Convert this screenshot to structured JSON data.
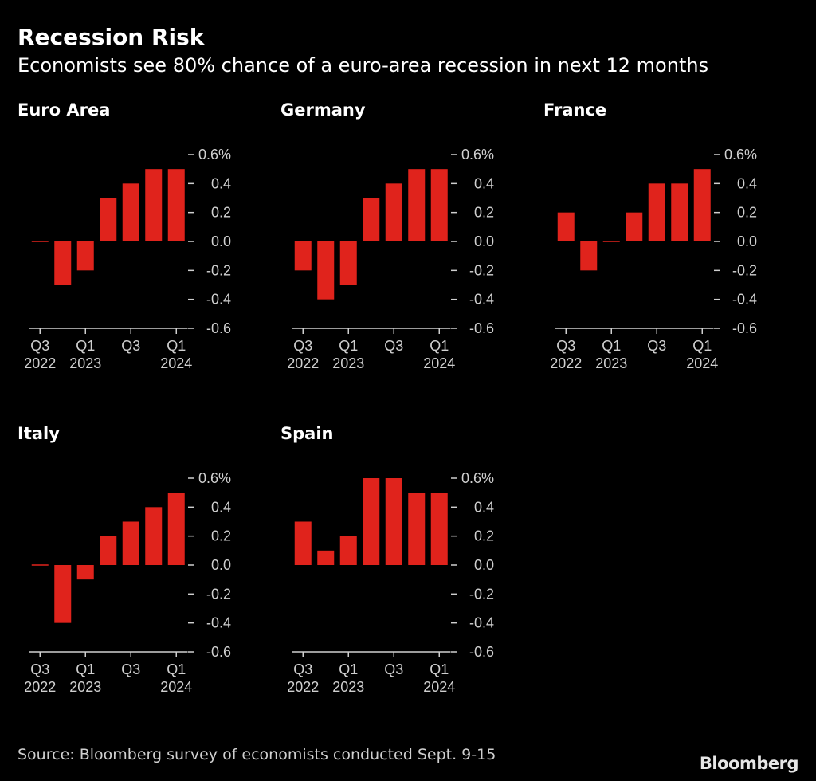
{
  "header": {
    "title": "Recession Risk",
    "subtitle": "Economists see 80% chance of a euro-area recession in next 12 months"
  },
  "footer": {
    "source": "Source: Bloomberg survey of economists conducted Sept. 9-15",
    "logo_text": "Bloomberg"
  },
  "colors": {
    "background": "#000000",
    "bar": "#e0231c",
    "text": "#ffffff",
    "axis": "#cfcfcf"
  },
  "chart_data": [
    {
      "type": "bar",
      "title": "Euro Area",
      "categories": [
        "Q3 2022",
        "Q4 2022",
        "Q1 2023",
        "Q2 2023",
        "Q3 2023",
        "Q4 2023",
        "Q1 2024"
      ],
      "values": [
        0.0,
        -0.3,
        -0.2,
        0.3,
        0.4,
        0.5,
        0.5
      ],
      "x_tick_labels": [
        {
          "line1": "Q3",
          "line2": "2022",
          "index": 0
        },
        {
          "line1": "Q1",
          "line2": "2023",
          "index": 2
        },
        {
          "line1": "Q3",
          "line2": "",
          "index": 4
        },
        {
          "line1": "Q1",
          "line2": "2024",
          "index": 6
        }
      ],
      "y_ticks": [
        0.6,
        0.4,
        0.2,
        0.0,
        -0.2,
        -0.4,
        -0.6
      ],
      "y_tick_labels": [
        "0.6%",
        "0.4",
        "0.2",
        "0.0",
        "-0.2",
        "-0.4",
        "-0.6"
      ],
      "ylim": [
        -0.6,
        0.6
      ],
      "grid": false
    },
    {
      "type": "bar",
      "title": "Germany",
      "categories": [
        "Q3 2022",
        "Q4 2022",
        "Q1 2023",
        "Q2 2023",
        "Q3 2023",
        "Q4 2023",
        "Q1 2024"
      ],
      "values": [
        -0.2,
        -0.4,
        -0.3,
        0.3,
        0.4,
        0.5,
        0.5
      ],
      "x_tick_labels": [
        {
          "line1": "Q3",
          "line2": "2022",
          "index": 0
        },
        {
          "line1": "Q1",
          "line2": "2023",
          "index": 2
        },
        {
          "line1": "Q3",
          "line2": "",
          "index": 4
        },
        {
          "line1": "Q1",
          "line2": "2024",
          "index": 6
        }
      ],
      "y_ticks": [
        0.6,
        0.4,
        0.2,
        0.0,
        -0.2,
        -0.4,
        -0.6
      ],
      "y_tick_labels": [
        "0.6%",
        "0.4",
        "0.2",
        "0.0",
        "-0.2",
        "-0.4",
        "-0.6"
      ],
      "ylim": [
        -0.6,
        0.6
      ],
      "grid": false
    },
    {
      "type": "bar",
      "title": "France",
      "categories": [
        "Q3 2022",
        "Q4 2022",
        "Q1 2023",
        "Q2 2023",
        "Q3 2023",
        "Q4 2023",
        "Q1 2024"
      ],
      "values": [
        0.2,
        -0.2,
        0.0,
        0.2,
        0.4,
        0.4,
        0.5
      ],
      "x_tick_labels": [
        {
          "line1": "Q3",
          "line2": "2022",
          "index": 0
        },
        {
          "line1": "Q1",
          "line2": "2023",
          "index": 2
        },
        {
          "line1": "Q3",
          "line2": "",
          "index": 4
        },
        {
          "line1": "Q1",
          "line2": "2024",
          "index": 6
        }
      ],
      "y_ticks": [
        0.6,
        0.4,
        0.2,
        0.0,
        -0.2,
        -0.4,
        -0.6
      ],
      "y_tick_labels": [
        "0.6%",
        "0.4",
        "0.2",
        "0.0",
        "-0.2",
        "-0.4",
        "-0.6"
      ],
      "ylim": [
        -0.6,
        0.6
      ],
      "grid": false
    },
    {
      "type": "bar",
      "title": "Italy",
      "categories": [
        "Q3 2022",
        "Q4 2022",
        "Q1 2023",
        "Q2 2023",
        "Q3 2023",
        "Q4 2023",
        "Q1 2024"
      ],
      "values": [
        0.0,
        -0.4,
        -0.1,
        0.2,
        0.3,
        0.4,
        0.5
      ],
      "x_tick_labels": [
        {
          "line1": "Q3",
          "line2": "2022",
          "index": 0
        },
        {
          "line1": "Q1",
          "line2": "2023",
          "index": 2
        },
        {
          "line1": "Q3",
          "line2": "",
          "index": 4
        },
        {
          "line1": "Q1",
          "line2": "2024",
          "index": 6
        }
      ],
      "y_ticks": [
        0.6,
        0.4,
        0.2,
        0.0,
        -0.2,
        -0.4,
        -0.6
      ],
      "y_tick_labels": [
        "0.6%",
        "0.4",
        "0.2",
        "0.0",
        "-0.2",
        "-0.4",
        "-0.6"
      ],
      "ylim": [
        -0.6,
        0.6
      ],
      "grid": false
    },
    {
      "type": "bar",
      "title": "Spain",
      "categories": [
        "Q3 2022",
        "Q4 2022",
        "Q1 2023",
        "Q2 2023",
        "Q3 2023",
        "Q4 2023",
        "Q1 2024"
      ],
      "values": [
        0.3,
        0.1,
        0.2,
        0.6,
        0.6,
        0.5,
        0.5
      ],
      "x_tick_labels": [
        {
          "line1": "Q3",
          "line2": "2022",
          "index": 0
        },
        {
          "line1": "Q1",
          "line2": "2023",
          "index": 2
        },
        {
          "line1": "Q3",
          "line2": "",
          "index": 4
        },
        {
          "line1": "Q1",
          "line2": "2024",
          "index": 6
        }
      ],
      "y_ticks": [
        0.6,
        0.4,
        0.2,
        0.0,
        -0.2,
        -0.4,
        -0.6
      ],
      "y_tick_labels": [
        "0.6%",
        "0.4",
        "0.2",
        "0.0",
        "-0.2",
        "-0.4",
        "-0.6"
      ],
      "ylim": [
        -0.6,
        0.6
      ],
      "grid": false
    }
  ]
}
